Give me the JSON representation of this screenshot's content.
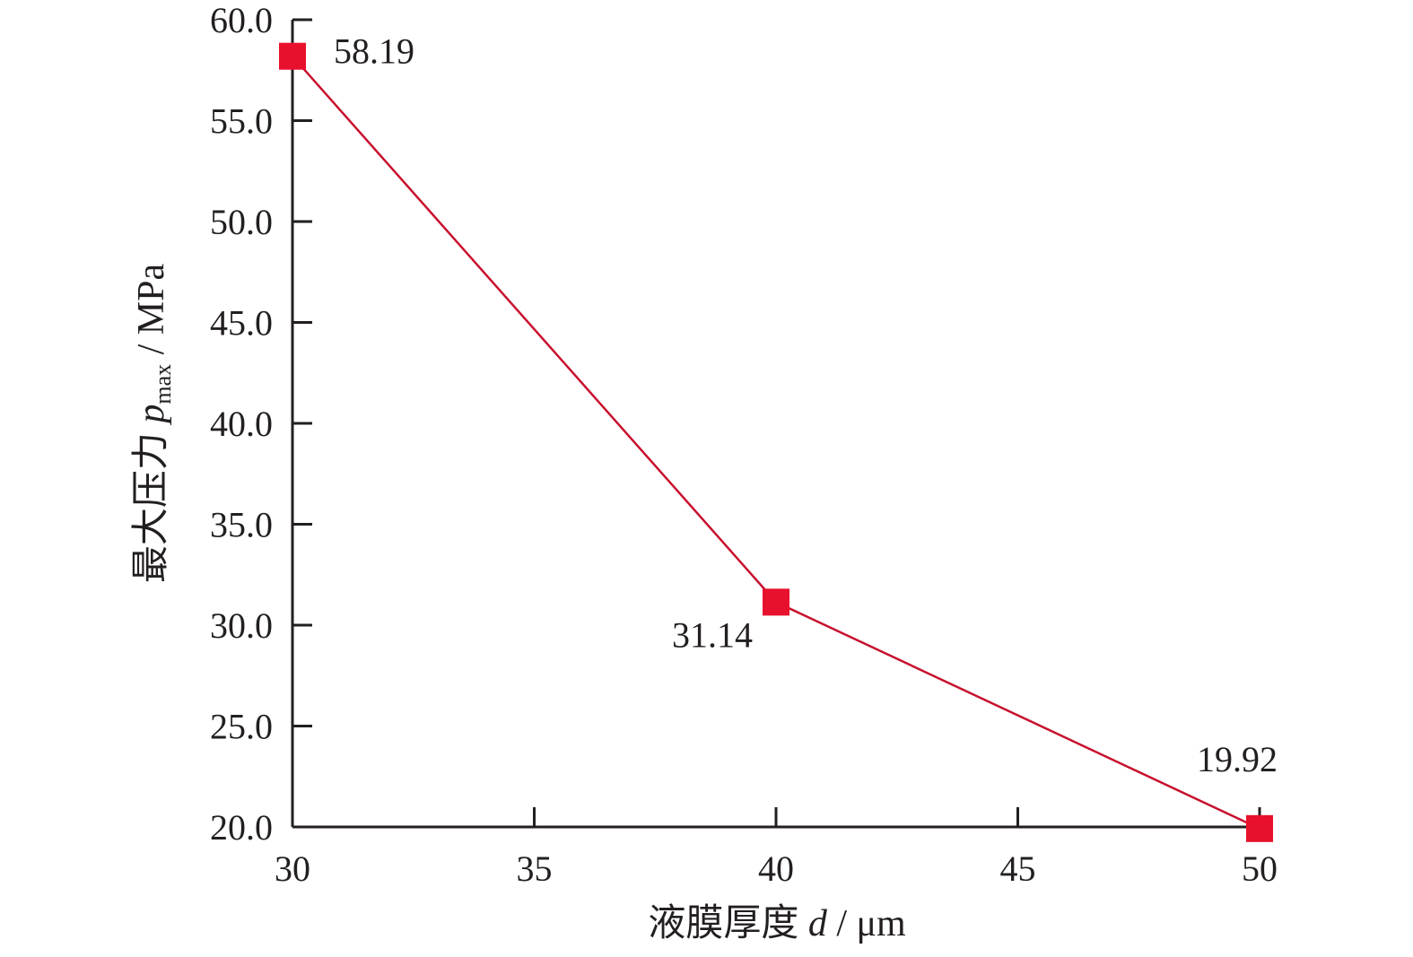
{
  "chart_data": {
    "type": "line",
    "title": "",
    "xlabel": {
      "prefix": "液膜厚度 ",
      "symbol": "d",
      "unit": " / μm"
    },
    "ylabel": {
      "prefix": "最大压力 ",
      "symbol": "p",
      "subscript": "max",
      "unit": " / MPa"
    },
    "xlim": [
      30,
      50
    ],
    "ylim": [
      20.0,
      60.0
    ],
    "x_ticks": [
      30,
      35,
      40,
      45,
      50
    ],
    "x_tick_labels": [
      "30",
      "35",
      "40",
      "45",
      "50"
    ],
    "y_ticks": [
      20,
      25,
      30,
      35,
      40,
      45,
      50,
      55,
      60
    ],
    "y_tick_labels": [
      "20.0",
      "25.0",
      "30.0",
      "35.0",
      "40.0",
      "45.0",
      "50.0",
      "55.0",
      "60.0"
    ],
    "grid": false,
    "series": [
      {
        "x": [
          30,
          40,
          50
        ],
        "y": [
          58.19,
          31.14,
          19.92
        ],
        "data_labels": [
          "58.19",
          "31.14",
          "19.92"
        ],
        "line_color": "#c8102e",
        "marker": "square",
        "marker_color": "#e8112d"
      }
    ],
    "axis_color": "#231f20"
  }
}
